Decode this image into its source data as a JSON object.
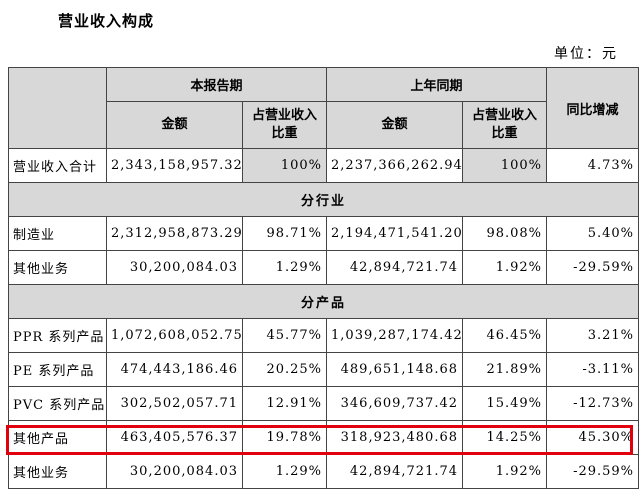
{
  "title": "营业收入构成",
  "unit": "单位：元",
  "headers": {
    "current_period": "本报告期",
    "prior_period": "上年同期",
    "yoy_change": "同比增减",
    "amount": "金额",
    "share": "占营业收入比重"
  },
  "total_row": {
    "label": "营业收入合计",
    "cur_amount": "2,343,158,957.32",
    "cur_share": "100%",
    "prev_amount": "2,237,366,262.94",
    "prev_share": "100%",
    "change": "4.73%"
  },
  "sections": {
    "by_industry": "分行业",
    "by_product": "分产品"
  },
  "industry_rows": [
    {
      "label": "制造业",
      "cur_amount": "2,312,958,873.29",
      "cur_share": "98.71%",
      "prev_amount": "2,194,471,541.20",
      "prev_share": "98.08%",
      "change": "5.40%"
    },
    {
      "label": "其他业务",
      "cur_amount": "30,200,084.03",
      "cur_share": "1.29%",
      "prev_amount": "42,894,721.74",
      "prev_share": "1.92%",
      "change": "-29.59%"
    }
  ],
  "product_rows": [
    {
      "label": "PPR 系列产品",
      "cur_amount": "1,072,608,052.75",
      "cur_share": "45.77%",
      "prev_amount": "1,039,287,174.42",
      "prev_share": "46.45%",
      "change": "3.21%"
    },
    {
      "label": "PE 系列产品",
      "cur_amount": "474,443,186.46",
      "cur_share": "20.25%",
      "prev_amount": "489,651,148.68",
      "prev_share": "21.89%",
      "change": "-3.11%"
    },
    {
      "label": "PVC 系列产品",
      "cur_amount": "302,502,057.71",
      "cur_share": "12.91%",
      "prev_amount": "346,609,737.42",
      "prev_share": "15.49%",
      "change": "-12.73%"
    },
    {
      "label": "其他产品",
      "cur_amount": "463,405,576.37",
      "cur_share": "19.78%",
      "prev_amount": "318,923,480.68",
      "prev_share": "14.25%",
      "change": "45.30%"
    },
    {
      "label": "其他业务",
      "cur_amount": "30,200,084.03",
      "cur_share": "1.29%",
      "prev_amount": "42,894,721.74",
      "prev_share": "1.92%",
      "change": "-29.59%"
    }
  ],
  "colors": {
    "highlight_border": "#e0000e",
    "header_fill": "#d8d8d8"
  }
}
